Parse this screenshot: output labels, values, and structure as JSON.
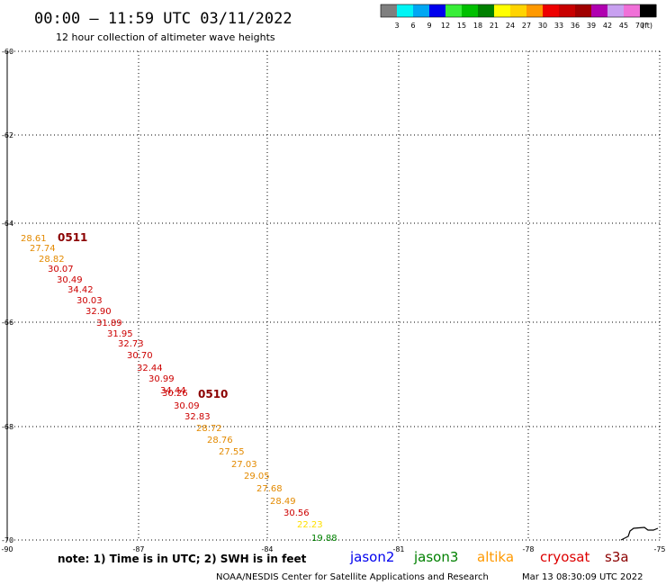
{
  "header": {
    "title": "00:00 – 11:59 UTC 03/11/2022",
    "subtitle": "12 hour collection of altimeter wave heights"
  },
  "legend": {
    "ticks": [
      "3",
      "6",
      "9",
      "12",
      "15",
      "18",
      "21",
      "24",
      "27",
      "30",
      "33",
      "36",
      "39",
      "42",
      "45",
      "70"
    ],
    "unit": "(ft)",
    "colors": [
      "#7f7f7f",
      "#00f5f5",
      "#00a7f3",
      "#0000ee",
      "#38ee38",
      "#00c000",
      "#008000",
      "#ffff00",
      "#ffd400",
      "#ff9900",
      "#ee0000",
      "#c80000",
      "#a00000",
      "#b000b0",
      "#c8a0f0",
      "#f070d8",
      "#000000"
    ]
  },
  "axes": {
    "lat_ticks": [
      "-60",
      "-62",
      "-64",
      "-66",
      "-68",
      "-70"
    ],
    "lon_ticks": [
      "-90",
      "-87",
      "-84",
      "-81",
      "-78",
      "-75"
    ]
  },
  "passes": [
    {
      "label": "0511",
      "color": "#8b0000"
    },
    {
      "label": "0510",
      "color": "#8b0000"
    }
  ],
  "measurements": [
    {
      "value": "28.61",
      "color": "#e38a00"
    },
    {
      "value": "27.74",
      "color": "#e38a00"
    },
    {
      "value": "28.82",
      "color": "#e38a00"
    },
    {
      "value": "30.07",
      "color": "#cc0000"
    },
    {
      "value": "30.49",
      "color": "#cc0000"
    },
    {
      "value": "34.42",
      "color": "#cc0000"
    },
    {
      "value": "30.03",
      "color": "#cc0000"
    },
    {
      "value": "32.90",
      "color": "#cc0000"
    },
    {
      "value": "31.89",
      "color": "#cc0000"
    },
    {
      "value": "31.95",
      "color": "#cc0000"
    },
    {
      "value": "32.73",
      "color": "#cc0000"
    },
    {
      "value": "30.70",
      "color": "#cc0000"
    },
    {
      "value": "32.44",
      "color": "#cc0000"
    },
    {
      "value": "30.99",
      "color": "#cc0000"
    },
    {
      "value": "34.44",
      "color": "#cc0000"
    },
    {
      "value": "30.26",
      "color": "#cc0000"
    },
    {
      "value": "30.09",
      "color": "#cc0000"
    },
    {
      "value": "32.83",
      "color": "#cc0000"
    },
    {
      "value": "28.72",
      "color": "#e38a00"
    },
    {
      "value": "28.76",
      "color": "#e38a00"
    },
    {
      "value": "27.55",
      "color": "#e38a00"
    },
    {
      "value": "27.03",
      "color": "#e38a00"
    },
    {
      "value": "29.05",
      "color": "#e38a00"
    },
    {
      "value": "27.68",
      "color": "#e38a00"
    },
    {
      "value": "28.49",
      "color": "#e38a00"
    },
    {
      "value": "30.56",
      "color": "#cc0000"
    },
    {
      "value": "22.23",
      "color": "#ffe000"
    },
    {
      "value": "19.88",
      "color": "#008000"
    }
  ],
  "footer": {
    "note": "note: 1) Time is in UTC; 2) SWH is in feet",
    "satellites": [
      {
        "name": "jason2",
        "color": "#0000ee"
      },
      {
        "name": "jason3",
        "color": "#008000"
      },
      {
        "name": "altika",
        "color": "#ff9900"
      },
      {
        "name": "cryosat",
        "color": "#dd0000"
      },
      {
        "name": "s3a",
        "color": "#8b0000"
      }
    ],
    "credit": "NOAA/NESDIS Center for Satellite Applications and Research",
    "timestamp": "Mar 13 08:30:09 UTC 2022"
  }
}
